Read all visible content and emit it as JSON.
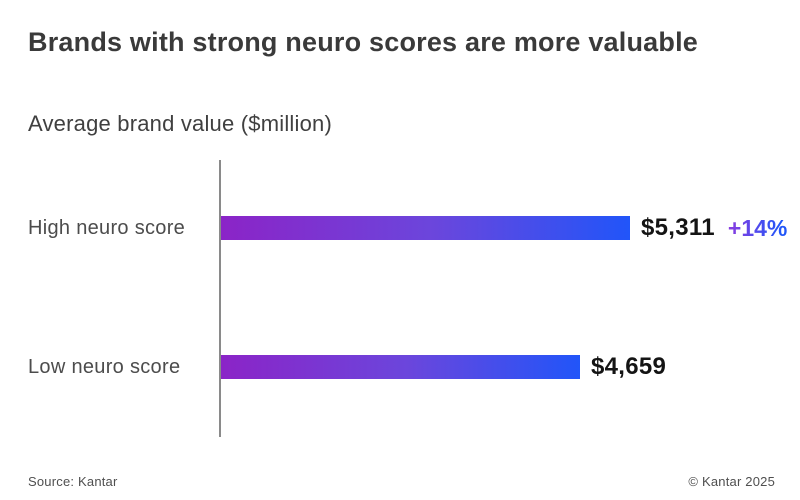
{
  "page": {
    "title": "Brands with strong neuro scores are more valuable",
    "subtitle": "Average brand value ($million)",
    "source": "Source: Kantar",
    "copyright": "© Kantar 2025"
  },
  "chart_data": {
    "type": "bar",
    "orientation": "horizontal",
    "title": "Brands with strong neuro scores are more valuable",
    "subtitle": "Average brand value ($million)",
    "categories": [
      "High neuro score",
      "Low neuro score"
    ],
    "values": [
      5311,
      4659
    ],
    "value_labels": [
      "$5,311",
      "$4,659"
    ],
    "annotations": [
      "+14%",
      ""
    ],
    "xlabel": "",
    "ylabel": "Average brand value ($million)",
    "axis_range": [
      0,
      5311
    ],
    "grid": false,
    "legend": false
  },
  "colors": {
    "bar_gradient_start": "#8b24c7",
    "bar_gradient_mid": "#6b46dc",
    "bar_gradient_end": "#2155f9",
    "annotation_gradient_start": "#8a3ce0",
    "annotation_gradient_end": "#2156f8",
    "axis_line": "#8a8a8a",
    "title_text": "#3a3a3a",
    "value_text": "#141414"
  }
}
